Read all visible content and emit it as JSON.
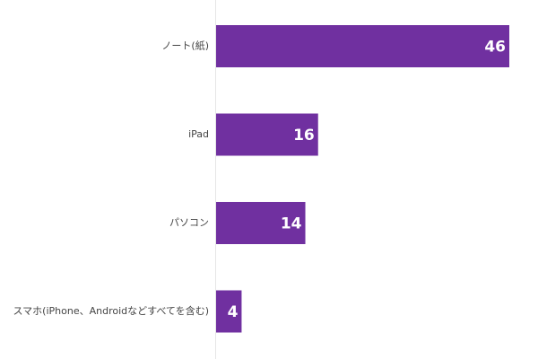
{
  "chart_data": {
    "type": "bar",
    "orientation": "horizontal",
    "categories": [
      "ノート(紙)",
      "iPad",
      "パソコン",
      "スマホ(iPhone、Androidなどすべてを含む)"
    ],
    "values": [
      46,
      16,
      14,
      4
    ],
    "xlim": [
      0,
      50
    ],
    "grid": false,
    "legend": "none",
    "bar_color": "#7030a0",
    "value_label_color": "#ffffff",
    "baseline_color": "#e6e6e6"
  }
}
